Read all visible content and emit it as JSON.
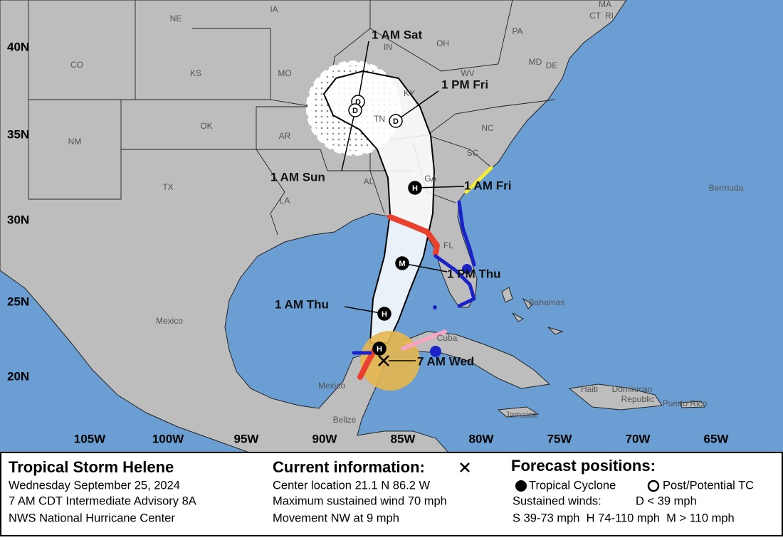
{
  "map": {
    "lat_labels": [
      "40N",
      "35N",
      "30N",
      "25N",
      "20N"
    ],
    "lon_labels": [
      "105W",
      "100W",
      "95W",
      "90W",
      "85W",
      "80W",
      "75W",
      "70W",
      "65W"
    ],
    "region_labels": [
      "NE",
      "IA",
      "CO",
      "KS",
      "MO",
      "IN",
      "OH",
      "PA",
      "WV",
      "KY",
      "TN",
      "OK",
      "AR",
      "NC",
      "SC",
      "GA",
      "AL",
      "LA",
      "TX",
      "NM",
      "FL",
      "MA",
      "CT",
      "RI",
      "MD",
      "DE",
      "Bermuda",
      "Bahamas",
      "Cuba",
      "Mexico",
      "Mexico",
      "Belize",
      "Jamaica",
      "Haiti",
      "Dominican",
      "Republic",
      "Puerto Rico"
    ],
    "forecast_points": [
      {
        "symbol": "D",
        "label": "1 AM Sat"
      },
      {
        "symbol": "D",
        "label": "1 AM Sun"
      },
      {
        "symbol": "D",
        "label": "1 PM Fri"
      },
      {
        "symbol": "H",
        "label": "1 AM Fri"
      },
      {
        "symbol": "M",
        "label": "1 PM Thu"
      },
      {
        "symbol": "H",
        "label": "1 AM Thu"
      },
      {
        "symbol": "H"
      }
    ],
    "current_label": "7 AM Wed"
  },
  "legend": {
    "title": "Tropical Storm Helene",
    "date": "Wednesday September 25, 2024",
    "advisory": "7 AM CDT Intermediate Advisory 8A",
    "center": "NWS National Hurricane Center",
    "current_title": "Current information:",
    "location": "Center location 21.1 N 86.2 W",
    "wind": "Maximum sustained wind 70 mph",
    "movement": "Movement NW at 9 mph",
    "forecast_title": "Forecast positions:",
    "tropical_cyclone": "Tropical Cyclone",
    "post_tc": "Post/Potential TC",
    "sustained": "Sustained winds:",
    "d_range": "D < 39 mph",
    "ranges": "S 39-73 mph  H 74-110 mph  M > 110 mph"
  }
}
